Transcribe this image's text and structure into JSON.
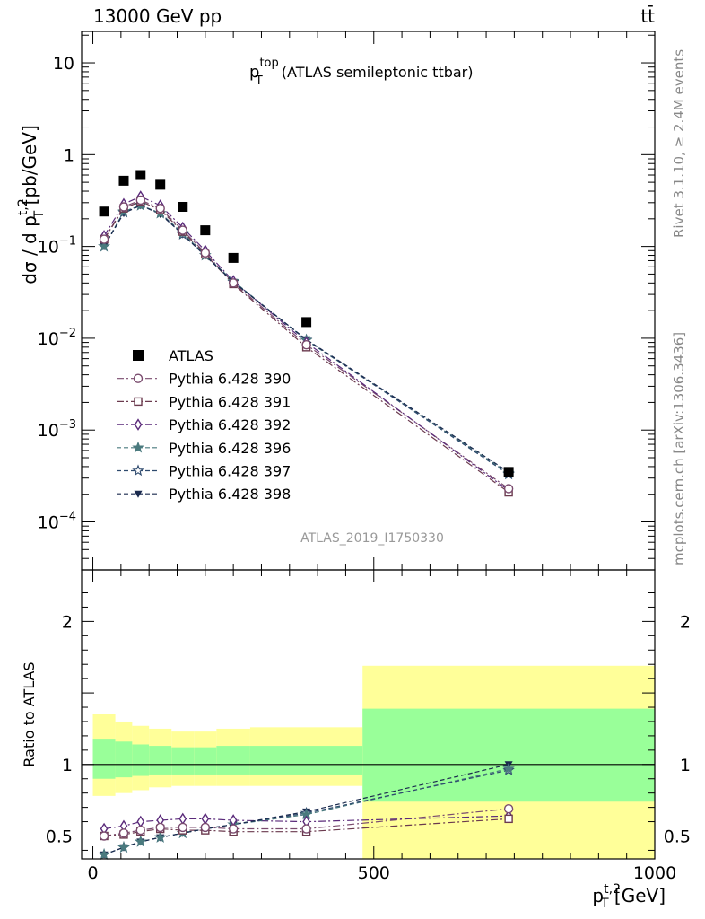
{
  "header": {
    "energy_label": "13000 GeV pp",
    "process_label": "tt̄"
  },
  "side_labels": {
    "rivet": "Rivet 3.1.10, ≥ 2.4M events",
    "mcplots": "mcplots.cern.ch [arXiv:1306.3436]"
  },
  "chart_data": [
    {
      "type": "line",
      "panel": "main",
      "title_main": "p",
      "title_sup": "top",
      "title_sub": "T",
      "title_rest": " (ATLAS semileptonic ttbar)",
      "analysis_label": "ATLAS_2019_I1750330",
      "ylabel": "dσ / d p_T^{t,2} [pb/GeV]",
      "ylabel_parts": {
        "a": "dσ / d p",
        "sup": "t,2",
        "sub": "T",
        "b": " [pb/GeV]"
      },
      "yscale": "log",
      "ylim": [
        3e-05,
        22
      ],
      "xlim": [
        -20,
        1000
      ],
      "y_ticks": [
        {
          "value": 10,
          "base": "10",
          "exp": ""
        },
        {
          "value": 1,
          "base": "1",
          "exp": ""
        },
        {
          "value": 0.1,
          "base": "10",
          "exp": "−1"
        },
        {
          "value": 0.01,
          "base": "10",
          "exp": "−2"
        },
        {
          "value": 0.001,
          "base": "10",
          "exp": "−3"
        },
        {
          "value": 0.0001,
          "base": "10",
          "exp": "−4"
        }
      ],
      "legend_position": "center-left",
      "x": [
        20,
        55,
        85,
        120,
        160,
        200,
        250,
        380,
        740
      ],
      "series": [
        {
          "name": "ATLAS",
          "marker": "filled-square",
          "color": "#000000",
          "line": "none",
          "values": [
            0.24,
            0.52,
            0.6,
            0.47,
            0.27,
            0.15,
            0.075,
            0.015,
            0.00035
          ]
        },
        {
          "name": "Pythia 6.428 390",
          "marker": "open-circle",
          "color": "#7a4b6e",
          "line": "dashdot",
          "values": [
            0.12,
            0.27,
            0.32,
            0.26,
            0.15,
            0.085,
            0.04,
            0.0085,
            0.00023
          ]
        },
        {
          "name": "Pythia 6.428 391",
          "marker": "open-square",
          "color": "#6b3a4e",
          "line": "dashdot",
          "values": [
            0.12,
            0.26,
            0.31,
            0.25,
            0.145,
            0.082,
            0.039,
            0.008,
            0.00021
          ]
        },
        {
          "name": "Pythia 6.428 392",
          "marker": "open-diamond",
          "color": "#5a2a7a",
          "line": "dashdot",
          "values": [
            0.13,
            0.29,
            0.35,
            0.28,
            0.16,
            0.09,
            0.042,
            0.009,
            0.00022
          ]
        },
        {
          "name": "Pythia 6.428 396",
          "marker": "star",
          "color": "#4a7a7e",
          "line": "dashed",
          "values": [
            0.1,
            0.24,
            0.28,
            0.23,
            0.14,
            0.08,
            0.042,
            0.0095,
            0.00034
          ]
        },
        {
          "name": "Pythia 6.428 397",
          "marker": "open-star",
          "color": "#2e4a6e",
          "line": "dashed",
          "values": [
            0.1,
            0.235,
            0.28,
            0.23,
            0.135,
            0.08,
            0.041,
            0.0096,
            0.00033
          ]
        },
        {
          "name": "Pythia 6.428 398",
          "marker": "filled-triangle-down",
          "color": "#1a2a4e",
          "line": "dashed",
          "values": [
            0.1,
            0.23,
            0.28,
            0.225,
            0.135,
            0.079,
            0.041,
            0.0097,
            0.00035
          ]
        }
      ]
    },
    {
      "type": "line",
      "panel": "ratio",
      "ylabel": "Ratio to ATLAS",
      "xlabel": "p_T^{t,2} [GeV]",
      "xlabel_parts": {
        "a": "p",
        "sup": "t,2",
        "sub": "T",
        "b": " [GeV]"
      },
      "xlim": [
        -20,
        1000
      ],
      "ylim": [
        0.34,
        2.36
      ],
      "x_ticks": [
        0,
        500,
        1000
      ],
      "y_ticks": [
        0.5,
        1,
        2
      ],
      "bands": {
        "bin_edges": [
          0,
          40,
          70,
          100,
          140,
          180,
          220,
          280,
          480,
          1000
        ],
        "inner": [
          [
            0.9,
            1.18
          ],
          [
            0.91,
            1.16
          ],
          [
            0.92,
            1.14
          ],
          [
            0.93,
            1.13
          ],
          [
            0.93,
            1.12
          ],
          [
            0.93,
            1.12
          ],
          [
            0.93,
            1.13
          ],
          [
            0.93,
            1.13
          ],
          [
            0.74,
            1.39
          ]
        ],
        "outer": [
          [
            0.78,
            1.35
          ],
          [
            0.8,
            1.3
          ],
          [
            0.82,
            1.27
          ],
          [
            0.84,
            1.25
          ],
          [
            0.85,
            1.23
          ],
          [
            0.85,
            1.23
          ],
          [
            0.85,
            1.25
          ],
          [
            0.85,
            1.26
          ],
          [
            0.3,
            1.69
          ]
        ],
        "inner_color": "#99ff99",
        "outer_color": "#ffff99"
      },
      "x": [
        20,
        55,
        85,
        120,
        160,
        200,
        250,
        380,
        740
      ],
      "series": [
        {
          "name": "Pythia 6.428 390",
          "marker": "open-circle",
          "color": "#7a4b6e",
          "line": "dashdot",
          "values": [
            0.5,
            0.52,
            0.54,
            0.56,
            0.56,
            0.56,
            0.55,
            0.55,
            0.69
          ]
        },
        {
          "name": "Pythia 6.428 391",
          "marker": "open-square",
          "color": "#6b3a4e",
          "line": "dashdot",
          "values": [
            0.5,
            0.51,
            0.53,
            0.55,
            0.54,
            0.54,
            0.53,
            0.53,
            0.62
          ]
        },
        {
          "name": "Pythia 6.428 392",
          "marker": "open-diamond",
          "color": "#5a2a7a",
          "line": "dashdot",
          "values": [
            0.55,
            0.57,
            0.6,
            0.61,
            0.62,
            0.62,
            0.61,
            0.6,
            0.64
          ]
        },
        {
          "name": "Pythia 6.428 396",
          "marker": "star",
          "color": "#4a7a7e",
          "line": "dashed",
          "values": [
            0.37,
            0.42,
            0.46,
            0.49,
            0.52,
            0.55,
            0.58,
            0.65,
            0.97
          ]
        },
        {
          "name": "Pythia 6.428 397",
          "marker": "open-star",
          "color": "#2e4a6e",
          "line": "dashed",
          "values": [
            0.37,
            0.42,
            0.46,
            0.49,
            0.52,
            0.55,
            0.58,
            0.66,
            0.96
          ]
        },
        {
          "name": "Pythia 6.428 398",
          "marker": "filled-triangle-down",
          "color": "#1a2a4e",
          "line": "dashed",
          "values": [
            0.37,
            0.42,
            0.46,
            0.49,
            0.52,
            0.55,
            0.58,
            0.67,
            1.0
          ]
        }
      ]
    }
  ]
}
